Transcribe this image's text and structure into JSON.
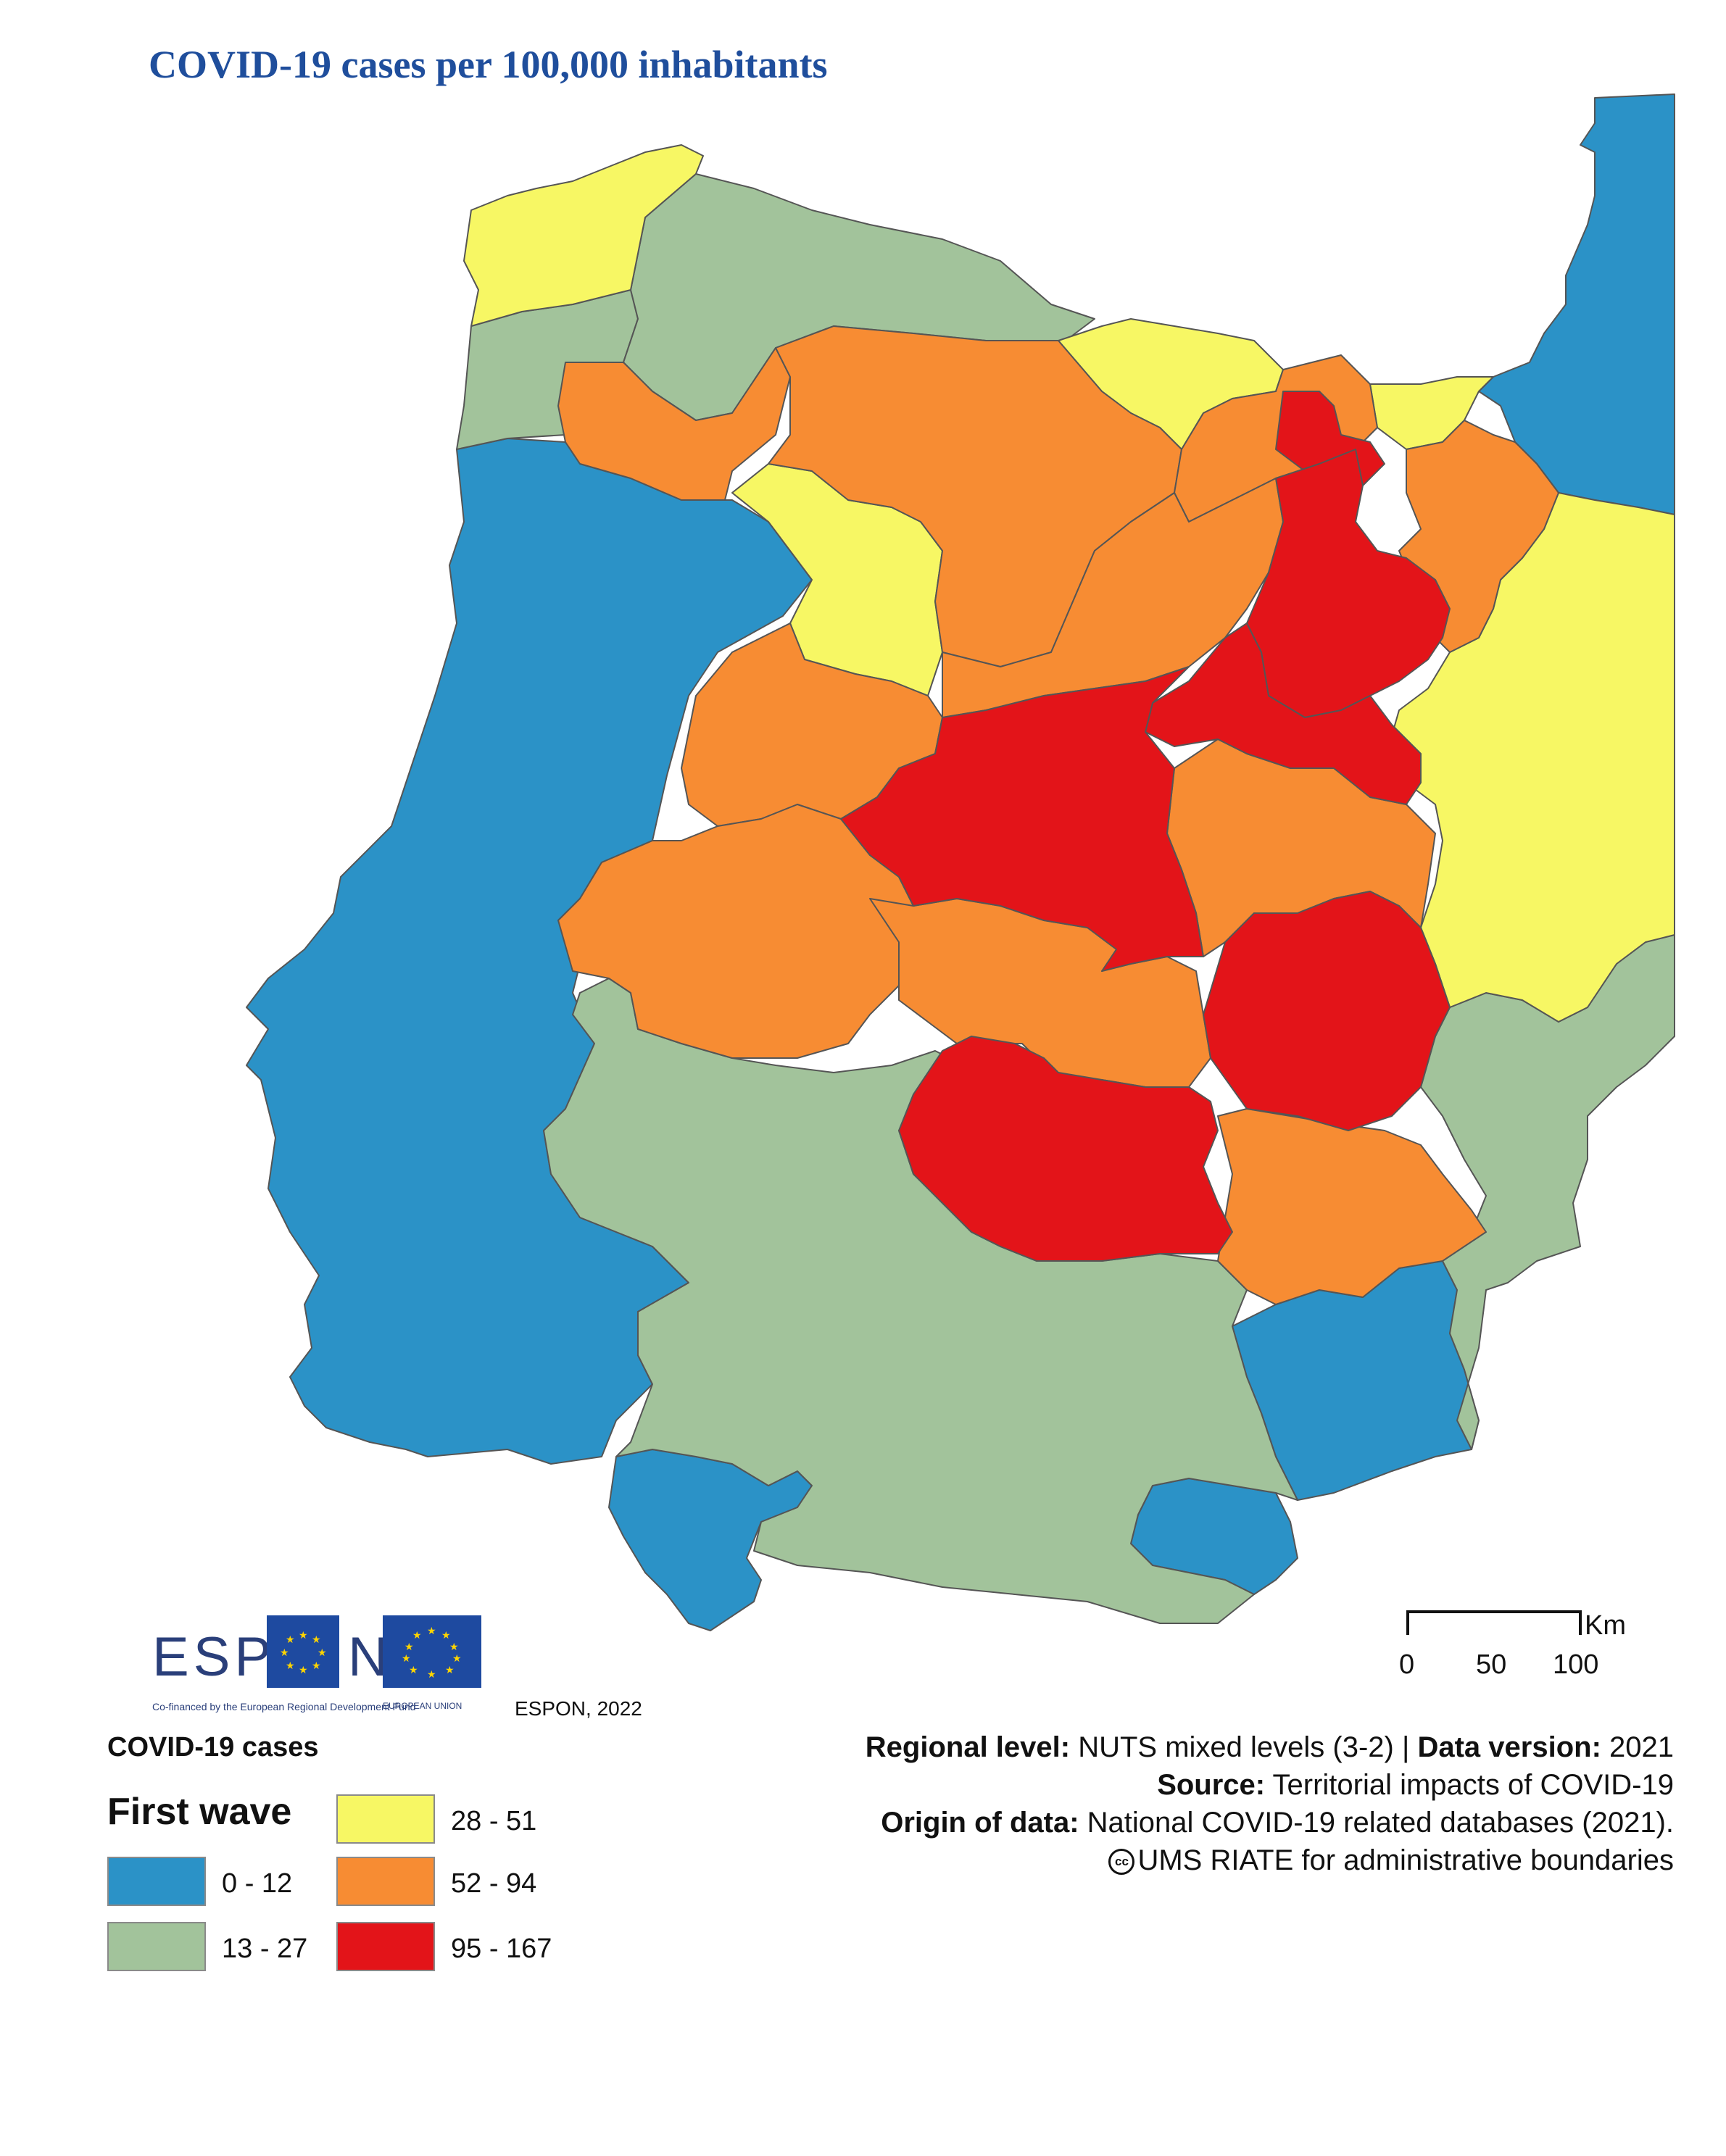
{
  "title": "COVID-19 cases per 100,000 inhabitants",
  "colors": {
    "class_0_12": "#2b92c7",
    "class_13_27": "#a2c39b",
    "class_28_51": "#f7f764",
    "class_52_94": "#f78c33",
    "class_95_167": "#e31419",
    "boundary": "#555555",
    "title": "#1f4e9c"
  },
  "legend": {
    "title": "COVID-19 cases",
    "subtitle": "First wave",
    "classes": [
      {
        "label": "0 - 12",
        "color": "#2b92c7"
      },
      {
        "label": "13 - 27",
        "color": "#a2c39b"
      },
      {
        "label": "28 - 51",
        "color": "#f7f764"
      },
      {
        "label": "52 - 94",
        "color": "#f78c33"
      },
      {
        "label": "95 - 167",
        "color": "#e31419"
      }
    ]
  },
  "scale": {
    "unit": "Km",
    "ticks": [
      "0",
      "50",
      "100"
    ]
  },
  "logos": {
    "espon_left": "ESP",
    "espon_right": "N",
    "cofinanced": "Co-financed by the European Regional Development Fund",
    "eu_caption": "EUROPEAN UNION"
  },
  "copyright": "ESPON, 2022",
  "credits": {
    "regional_level_label": "Regional level:",
    "regional_level_value": " NUTS mixed levels (3-2) | ",
    "data_version_label": "Data version:",
    "data_version_value": " 2021",
    "source_label": "Source:",
    "source_value": " Territorial impacts of COVID-19",
    "origin_label": "Origin of data:",
    "origin_value": " National COVID-19 related databases (2021).",
    "boundaries": "UMS RIATE for administrative boundaries",
    "cc_icon": "cc"
  }
}
